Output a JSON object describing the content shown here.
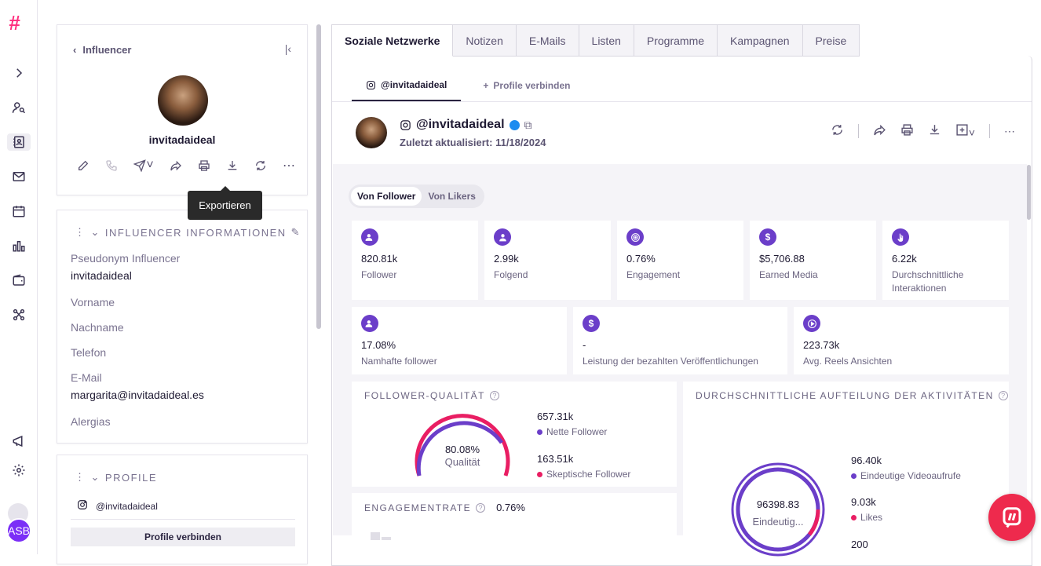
{
  "app": {
    "logo": "#",
    "user_initials": "ASB"
  },
  "sidebar_left": {
    "back_label": "Influencer",
    "profile_name": "invitadaideal",
    "tooltip": "Exportieren",
    "info_section": {
      "title": "INFLUENCER INFORMATIONEN",
      "fields": [
        {
          "label": "Pseudonym Influencer",
          "value": "invitadaideal"
        },
        {
          "label": "Vorname",
          "value": ""
        },
        {
          "label": "Nachname",
          "value": ""
        },
        {
          "label": "Telefon",
          "value": ""
        },
        {
          "label": "E-Mail",
          "value": "margarita@invitadaideal.es"
        },
        {
          "label": "Alergias",
          "value": ""
        }
      ]
    },
    "profile_section": {
      "title": "PROFILE",
      "handle": "@invitadaideal",
      "connect_button": "Profile verbinden"
    }
  },
  "tabs": [
    "Soziale Netzwerke",
    "Notizen",
    "E-Mails",
    "Listen",
    "Programme",
    "Kampagnen",
    "Preise"
  ],
  "active_tab": "Soziale Netzwerke",
  "subtabs": {
    "active": "@invitadaideal",
    "connect": "Profile verbinden"
  },
  "profile_header": {
    "handle": "@invitadaideal",
    "updated": "Zuletzt aktualisiert: 11/18/2024"
  },
  "toggle": {
    "on": "Von Follower",
    "off": "Von Likers"
  },
  "metrics_row1": [
    {
      "value": "820.81k",
      "label": "Follower",
      "icon": "users-icon"
    },
    {
      "value": "2.99k",
      "label": "Folgend",
      "icon": "user-follow-icon"
    },
    {
      "value": "0.76%",
      "label": "Engagement",
      "icon": "target-icon"
    },
    {
      "value": "$5,706.88",
      "label": "Earned Media",
      "icon": "dollar-icon"
    },
    {
      "value": "6.22k",
      "label": "Durchschnittliche Interaktionen",
      "icon": "hand-icon"
    }
  ],
  "metrics_row2": [
    {
      "value": "17.08%",
      "label": "Namhafte follower",
      "icon": "users-icon"
    },
    {
      "value": "-",
      "label": "Leistung der bezahlten Veröffentlichungen",
      "icon": "dollar-icon"
    },
    {
      "value": "223.73k",
      "label": "Avg. Reels Ansichten",
      "icon": "play-icon"
    }
  ],
  "follower_quality": {
    "title": "FOLLOWER-QUALITÄT",
    "center_value": "80.08%",
    "center_label": "Qualität",
    "nice_value": "657.31k",
    "nice_label": "Nette Follower",
    "sceptic_value": "163.51k",
    "sceptic_label": "Skeptische Follower",
    "colors": {
      "nice": "#6b3ec9",
      "sceptic": "#e91e63"
    }
  },
  "activity": {
    "title": "DURCHSCHNITTLICHE AUFTEILUNG DER AKTIVITÄTEN",
    "center_value": "96398.83",
    "center_label": "Eindeutig...",
    "items": [
      {
        "value": "96.40k",
        "label": "Eindeutige Videoaufrufe",
        "color": "#6b3ec9"
      },
      {
        "value": "9.03k",
        "label": "Likes",
        "color": "#e91e63"
      },
      {
        "value": "200",
        "label": "",
        "color": ""
      }
    ]
  },
  "engagement": {
    "title": "ENGAGEMENTRATE",
    "value": "0.76%"
  }
}
